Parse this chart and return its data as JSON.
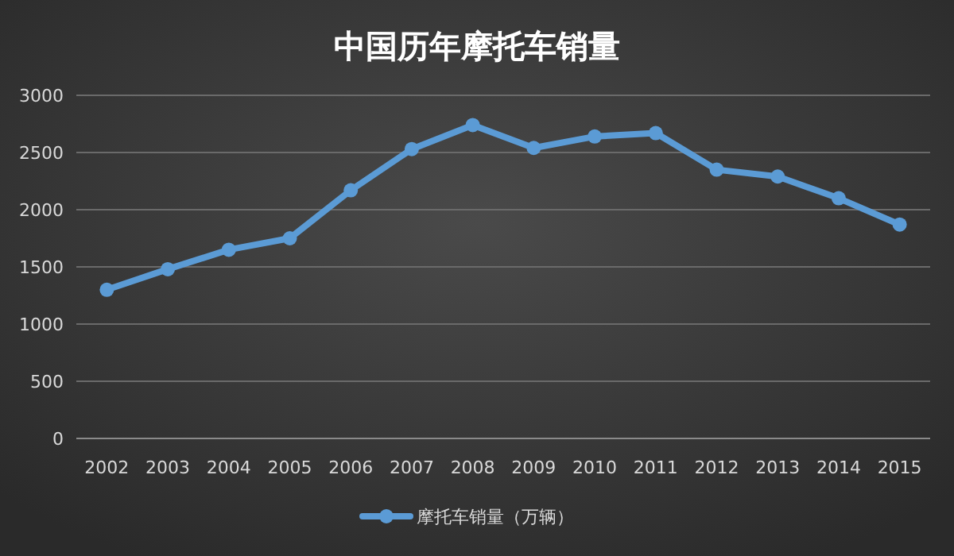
{
  "chart_data": {
    "type": "line",
    "title": "中国历年摩托车销量",
    "categories": [
      "2002",
      "2003",
      "2004",
      "2005",
      "2006",
      "2007",
      "2008",
      "2009",
      "2010",
      "2011",
      "2012",
      "2013",
      "2014",
      "2015"
    ],
    "series": [
      {
        "name": "摩托车销量（万辆）",
        "color": "#5b9bd5",
        "values": [
          1300,
          1480,
          1650,
          1750,
          2170,
          2530,
          2740,
          2540,
          2640,
          2670,
          2350,
          2290,
          2100,
          1870
        ]
      }
    ],
    "ylim": [
      0,
      3000
    ],
    "yticks": [
      0,
      500,
      1000,
      1500,
      2000,
      2500,
      3000
    ],
    "grid": "y",
    "legend": "bottom",
    "marker": "circle",
    "line_style": "solid"
  }
}
